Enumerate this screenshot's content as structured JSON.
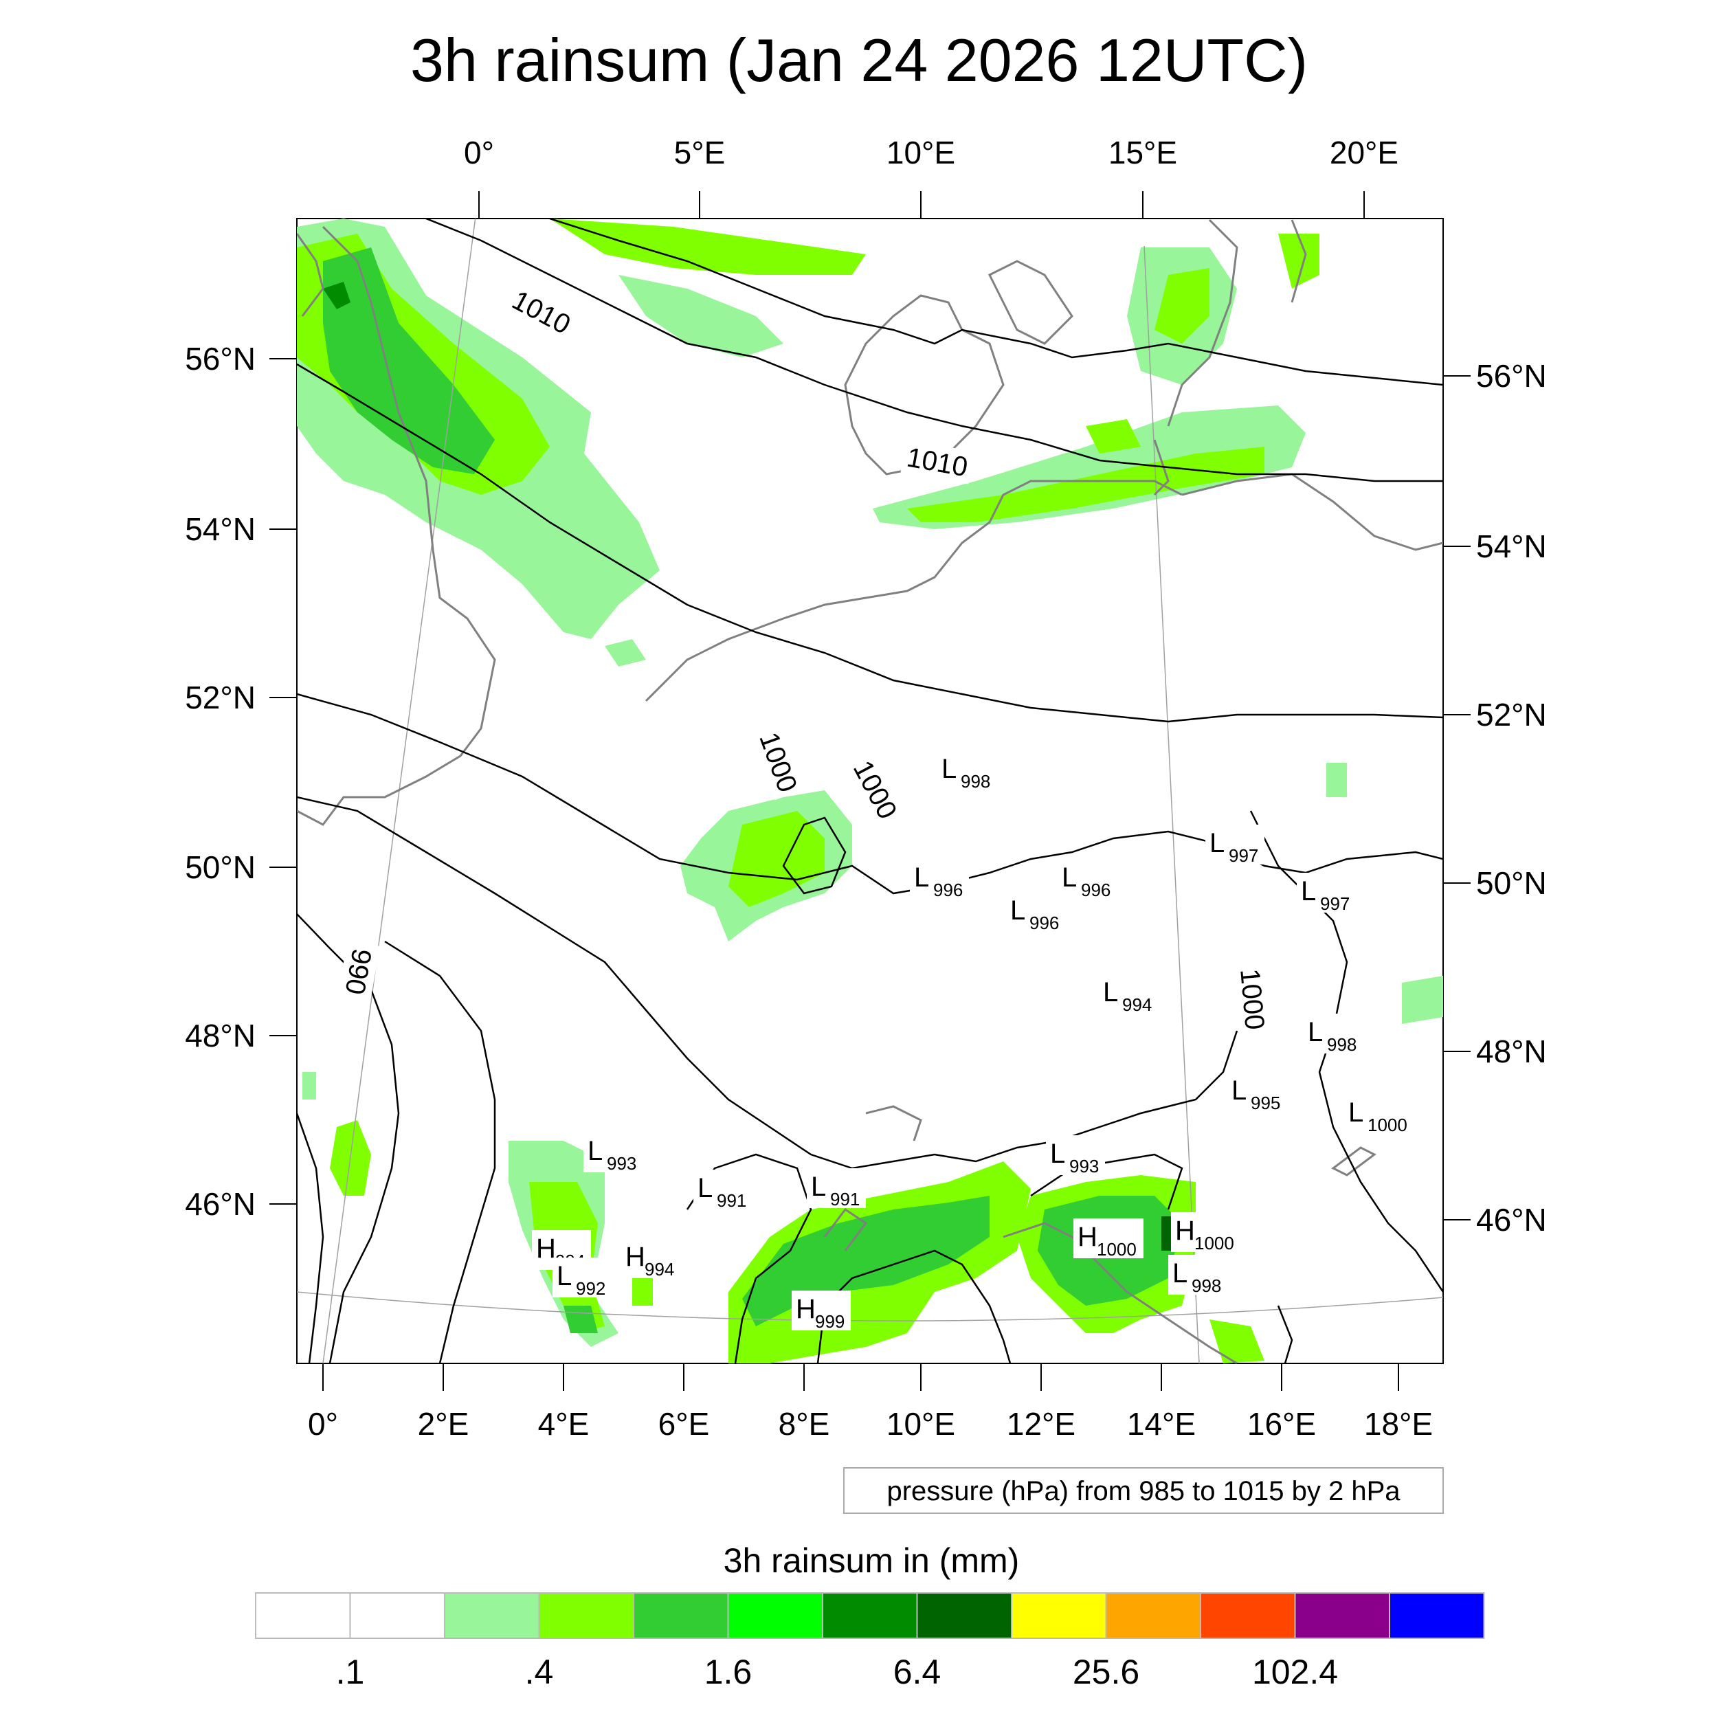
{
  "title": "3h rainsum (Jan 24 2026 12UTC)",
  "top_lon_labels": [
    "0°",
    "5°E",
    "10°E",
    "15°E",
    "20°E"
  ],
  "bottom_lon_labels": [
    "0°",
    "2°E",
    "4°E",
    "6°E",
    "8°E",
    "10°E",
    "12°E",
    "14°E",
    "16°E",
    "18°E"
  ],
  "left_lat_labels": [
    "56°N",
    "54°N",
    "52°N",
    "50°N",
    "48°N",
    "46°N"
  ],
  "right_lat_labels": [
    "56°N",
    "54°N",
    "52°N",
    "50°N",
    "48°N",
    "46°N"
  ],
  "contour_labels": {
    "c1010_west": "1010",
    "c1010_east": "1010",
    "c1000_a": "1000",
    "c1000_b": "1000",
    "c1000_c": "1000",
    "c990": "990"
  },
  "pressure_centers": [
    {
      "type": "L",
      "value": "998"
    },
    {
      "type": "L",
      "value": "997"
    },
    {
      "type": "L",
      "value": "996"
    },
    {
      "type": "L",
      "value": "996"
    },
    {
      "type": "L",
      "value": "996"
    },
    {
      "type": "L",
      "value": "997"
    },
    {
      "type": "L",
      "value": "994"
    },
    {
      "type": "L",
      "value": "998"
    },
    {
      "type": "L",
      "value": "995"
    },
    {
      "type": "L",
      "value": "1000"
    },
    {
      "type": "L",
      "value": "993"
    },
    {
      "type": "L",
      "value": "993"
    },
    {
      "type": "L",
      "value": "991"
    },
    {
      "type": "L",
      "value": "991"
    },
    {
      "type": "H",
      "value": "994"
    },
    {
      "type": "L",
      "value": "992"
    },
    {
      "type": "H",
      "value": "994"
    },
    {
      "type": "H",
      "value": "999"
    },
    {
      "type": "H",
      "value": "1000"
    },
    {
      "type": "H",
      "value": "1000"
    },
    {
      "type": "L",
      "value": "998"
    }
  ],
  "info_box": "pressure (hPa) from 985 to 1015 by 2 hPa",
  "colorbar": {
    "title": "3h rainsum in (mm)",
    "colors": [
      "#ffffff",
      "#ffffff",
      "#99f599",
      "#7fff00",
      "#32cd32",
      "#00ff00",
      "#008b00",
      "#006400",
      "#ffff00",
      "#ffa500",
      "#ff4500",
      "#8b008b",
      "#0000ff"
    ],
    "labels": [
      ".1",
      ".4",
      "1.6",
      "6.4",
      "25.6",
      "102.4"
    ]
  },
  "colors": {
    "contour": "#000000",
    "coastline": "#808080",
    "grid": "#a0a0a0"
  }
}
